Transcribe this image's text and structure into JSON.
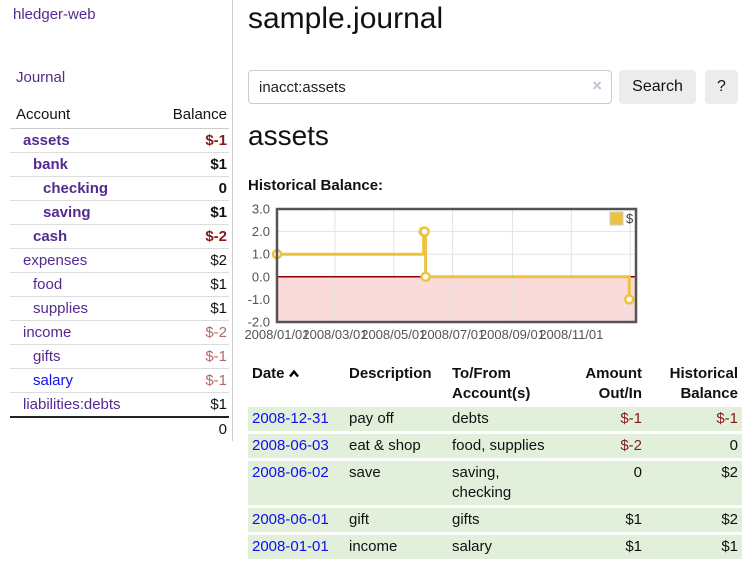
{
  "colors": {
    "link_visited": "#542a90",
    "link_blue": "#0d10ee",
    "negative_strong": "#851a1a",
    "negative_soft": "#b56a6a",
    "row_green": "#e2efda",
    "button_bg": "#ececec",
    "input_border": "#cccccc",
    "divider": "#cccccc",
    "separator": "#dddddd",
    "clear_icon": "#c9bddb"
  },
  "app": {
    "brand": "hledger-web",
    "nav_journal": "Journal"
  },
  "sidebar": {
    "header": {
      "account": "Account",
      "balance": "Balance"
    },
    "accounts": [
      {
        "name": "assets",
        "balance": "$-1",
        "depth": 1,
        "bold": true,
        "neg": "strong"
      },
      {
        "name": "bank",
        "balance": "$1",
        "depth": 2,
        "bold": true
      },
      {
        "name": "checking",
        "balance": "0",
        "depth": 3,
        "bold": true
      },
      {
        "name": "saving",
        "balance": "$1",
        "depth": 3,
        "bold": true
      },
      {
        "name": "cash",
        "balance": "$-2",
        "depth": 2,
        "bold": true,
        "neg": "strong"
      },
      {
        "name": "expenses",
        "balance": "$2",
        "depth": 1
      },
      {
        "name": "food",
        "balance": "$1",
        "depth": 2
      },
      {
        "name": "supplies",
        "balance": "$1",
        "depth": 2
      },
      {
        "name": "income",
        "balance": "$-2",
        "depth": 1,
        "neg": "soft"
      },
      {
        "name": "gifts",
        "balance": "$-1",
        "depth": 2,
        "neg": "soft"
      },
      {
        "name": "salary",
        "balance": "$-1",
        "depth": 2,
        "neg": "soft",
        "link": "unvisited"
      },
      {
        "name": "liabilities:debts",
        "balance": "$1",
        "depth": 1
      }
    ],
    "total": "0"
  },
  "header": {
    "title": "sample.journal"
  },
  "search": {
    "value": "inacct:assets",
    "clear_icon": "×",
    "button_label": "Search",
    "help_label": "?"
  },
  "account_page": {
    "heading": "assets"
  },
  "chart_data": {
    "type": "line",
    "step": true,
    "title": "Historical Balance:",
    "series": [
      {
        "name": "$",
        "color": "#edc240",
        "points": [
          [
            "2008-01-01",
            1
          ],
          [
            "2008-06-01",
            2
          ],
          [
            "2008-06-02",
            2
          ],
          [
            "2008-06-03",
            0
          ],
          [
            "2008-12-31",
            -1
          ]
        ]
      }
    ],
    "ylim": [
      -2,
      3
    ],
    "yticks": [
      "3.0",
      "2.0",
      "1.0",
      "0.0",
      "-1.0",
      "-2.0"
    ],
    "xticks": [
      "2008/01/01",
      "2008/03/01",
      "2008/05/01",
      "2008/07/01",
      "2008/09/01",
      "2008/11/01"
    ],
    "extra_gridline_dates": [
      "2009/01/01"
    ],
    "x_start": "2008-01-01",
    "x_span_days": 372,
    "grid": true,
    "legend_position": "top-right",
    "negative_region_color": "#fbdada",
    "zero_line_color": "#8b0000",
    "grid_color": "#e3e3e3",
    "border_color": "#545454",
    "tick_color": "#545454"
  },
  "register": {
    "columns": [
      "Date",
      "Description",
      "To/From Account(s)",
      "Amount Out/In",
      "Historical Balance"
    ],
    "sort_column": "Date",
    "sort_direction": "asc",
    "rows": [
      {
        "date": "2008-12-31",
        "description": "pay off",
        "to_from": "debts",
        "amount": "$-1",
        "balance": "$-1"
      },
      {
        "date": "2008-06-03",
        "description": "eat & shop",
        "to_from": "food, supplies",
        "amount": "$-2",
        "balance": "0"
      },
      {
        "date": "2008-06-02",
        "description": "save",
        "to_from": "saving,\nchecking",
        "amount": "0",
        "balance": "$2"
      },
      {
        "date": "2008-06-01",
        "description": "gift",
        "to_from": "gifts",
        "amount": "$1",
        "balance": "$2"
      },
      {
        "date": "2008-01-01",
        "description": "income",
        "to_from": "salary",
        "amount": "$1",
        "balance": "$1"
      }
    ]
  }
}
